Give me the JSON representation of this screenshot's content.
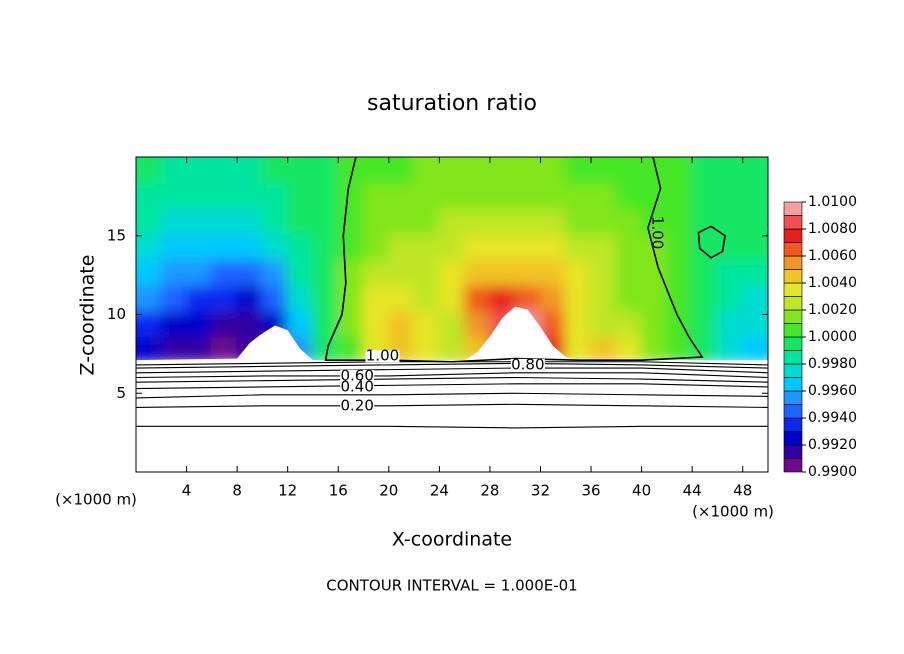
{
  "chart_data": {
    "type": "contour",
    "title": "saturation ratio",
    "x_label": "X-coordinate",
    "y_label": "Z-coordinate",
    "x_unit": "(×1000 m)",
    "y_unit": "(×1000 m)",
    "footer": "CONTOUR INTERVAL = 1.000E-01",
    "xlim": [
      0,
      50
    ],
    "ylim": [
      0,
      20
    ],
    "xticks": [
      4,
      8,
      12,
      16,
      20,
      24,
      28,
      32,
      36,
      40,
      44,
      48
    ],
    "yticks": [
      5,
      10,
      15
    ],
    "colorbar": {
      "levels": [
        0.99,
        0.991,
        0.992,
        0.993,
        0.994,
        0.995,
        0.996,
        0.997,
        0.998,
        0.999,
        1.0,
        1.001,
        1.002,
        1.003,
        1.004,
        1.005,
        1.006,
        1.007,
        1.008,
        1.009,
        1.01
      ],
      "colors": [
        "#6e0a8c",
        "#3200a0",
        "#0000c8",
        "#0a28f0",
        "#1e64ff",
        "#1e96ff",
        "#00c8ff",
        "#00dcd2",
        "#00e6a0",
        "#14e664",
        "#46e628",
        "#82e61e",
        "#bee628",
        "#e6e628",
        "#f0c328",
        "#f09628",
        "#f05a1e",
        "#e61e1e",
        "#f05050",
        "#f0a0a0"
      ],
      "ticks": [
        {
          "value": 0.99,
          "label": "0.9900"
        },
        {
          "value": 0.992,
          "label": "0.9920"
        },
        {
          "value": 0.994,
          "label": "0.9940"
        },
        {
          "value": 0.996,
          "label": "0.9960"
        },
        {
          "value": 0.998,
          "label": "0.9980"
        },
        {
          "value": 1.0,
          "label": "1.0000"
        },
        {
          "value": 1.002,
          "label": "1.0020"
        },
        {
          "value": 1.004,
          "label": "1.0040"
        },
        {
          "value": 1.006,
          "label": "1.0060"
        },
        {
          "value": 1.008,
          "label": "1.0080"
        },
        {
          "value": 1.01,
          "label": "1.0100"
        }
      ]
    },
    "field": {
      "x_edges": [
        0,
        2,
        4,
        6,
        8,
        10,
        12,
        14,
        16,
        18,
        20,
        22,
        24,
        26,
        28,
        30,
        32,
        34,
        36,
        38,
        40,
        42,
        44,
        46,
        48,
        50
      ],
      "z_edges": [
        7,
        8.625,
        10.25,
        11.875,
        13.5,
        15.125,
        16.75,
        18.375,
        20
      ],
      "values": [
        [
          0.9925,
          0.9915,
          0.991,
          0.9905,
          0.991,
          0.9905,
          0.995,
          0.999,
          1.0005,
          1.003,
          1.004,
          1.0035,
          1.002,
          1.004,
          1.008,
          1.009,
          1.007,
          1.003,
          1.004,
          1.003,
          1.001,
          1.0005,
          0.999,
          0.9975,
          0.9965
        ],
        [
          0.9935,
          0.9925,
          0.992,
          0.9915,
          0.991,
          0.992,
          0.9965,
          0.9995,
          1.001,
          1.0035,
          1.0045,
          1.003,
          1.0025,
          1.005,
          1.0085,
          1.009,
          1.006,
          1.003,
          1.0025,
          1.002,
          1.001,
          1.0005,
          0.999,
          0.997,
          0.997
        ],
        [
          0.995,
          0.9945,
          0.9935,
          0.993,
          0.9925,
          0.9945,
          0.997,
          0.9995,
          1.0015,
          1.003,
          1.003,
          1.002,
          1.003,
          1.006,
          1.007,
          1.0065,
          1.005,
          1.003,
          1.002,
          1.0015,
          1.001,
          1.0005,
          0.9995,
          0.998,
          0.9975
        ],
        [
          0.996,
          0.9955,
          0.995,
          0.9945,
          0.994,
          0.9955,
          0.998,
          0.9995,
          1.001,
          1.002,
          1.002,
          1.002,
          1.003,
          1.004,
          1.004,
          1.0045,
          1.004,
          1.003,
          1.002,
          1.0015,
          1.001,
          1.0005,
          0.9995,
          0.9985,
          0.9985
        ],
        [
          0.997,
          0.9965,
          0.9965,
          0.996,
          0.996,
          0.997,
          0.9985,
          0.9995,
          1.0005,
          1.0015,
          1.002,
          1.002,
          1.0025,
          1.003,
          1.003,
          1.003,
          1.003,
          1.0025,
          1.002,
          1.0015,
          1.001,
          1.0005,
          0.9995,
          0.9995,
          0.999
        ],
        [
          0.998,
          0.9975,
          0.9975,
          0.997,
          0.997,
          0.998,
          0.999,
          0.9995,
          1.0005,
          1.001,
          1.0015,
          1.0015,
          1.002,
          1.002,
          1.002,
          1.002,
          1.002,
          1.0015,
          1.0015,
          1.001,
          1.0005,
          1.0005,
          0.9995,
          0.9995,
          0.9995
        ],
        [
          0.9985,
          0.998,
          0.998,
          0.998,
          0.998,
          0.9985,
          0.999,
          0.9995,
          1.0005,
          1.001,
          1.001,
          1.001,
          1.0015,
          1.0015,
          1.0015,
          1.0015,
          1.0015,
          1.001,
          1.001,
          1.0005,
          1.0005,
          1.0005,
          0.9995,
          0.9995,
          0.9995
        ],
        [
          0.999,
          0.9985,
          0.9985,
          0.9985,
          0.9985,
          0.999,
          0.9995,
          0.9995,
          1.0005,
          1.0005,
          1.0005,
          1.001,
          1.001,
          1.001,
          1.001,
          1.001,
          1.001,
          1.0005,
          1.0005,
          1.0005,
          1.0005,
          1.0005,
          0.9995,
          0.9995,
          0.9995
        ]
      ]
    },
    "terrain": {
      "x": [
        0,
        8,
        9,
        10,
        11,
        12,
        13,
        14,
        26,
        27,
        28,
        29,
        30,
        31,
        32,
        33,
        34,
        35,
        50
      ],
      "z": [
        7.1,
        7.2,
        8.2,
        8.8,
        9.3,
        9.0,
        7.8,
        7.1,
        7.1,
        7.6,
        8.6,
        9.8,
        10.5,
        10.3,
        9.2,
        8.0,
        7.3,
        7.1,
        7.1
      ]
    },
    "contours": [
      {
        "level": 0.1,
        "x": [
          0,
          10,
          20,
          30,
          40,
          50
        ],
        "z": [
          2.9,
          2.9,
          2.9,
          2.8,
          2.9,
          2.9
        ]
      },
      {
        "level": 0.2,
        "label": "0.20",
        "x": [
          0,
          10,
          20,
          30,
          40,
          50
        ],
        "z": [
          4.1,
          4.2,
          4.2,
          4.3,
          4.2,
          4.1
        ]
      },
      {
        "level": 0.3,
        "x": [
          0,
          10,
          20,
          30,
          40,
          50
        ],
        "z": [
          4.7,
          4.9,
          4.9,
          5.0,
          4.9,
          4.8
        ]
      },
      {
        "level": 0.4,
        "label": "0.40",
        "x": [
          0,
          10,
          20,
          30,
          40,
          50
        ],
        "z": [
          5.3,
          5.4,
          5.5,
          5.6,
          5.6,
          5.4
        ]
      },
      {
        "level": 0.5,
        "x": [
          0,
          10,
          20,
          30,
          40,
          50
        ],
        "z": [
          5.7,
          5.8,
          5.9,
          6.0,
          5.9,
          5.7
        ]
      },
      {
        "level": 0.6,
        "label": "0.60",
        "x": [
          0,
          10,
          20,
          30,
          40,
          50
        ],
        "z": [
          6.0,
          6.1,
          6.1,
          6.3,
          6.3,
          6.0
        ]
      },
      {
        "level": 0.7,
        "x": [
          0,
          10,
          20,
          30,
          40,
          50
        ],
        "z": [
          6.3,
          6.4,
          6.5,
          6.6,
          6.6,
          6.3
        ]
      },
      {
        "level": 0.8,
        "label": "0.80",
        "x": [
          0,
          10,
          20,
          30,
          40,
          50
        ],
        "z": [
          6.6,
          6.7,
          6.8,
          6.9,
          6.8,
          6.6
        ]
      },
      {
        "level": 0.9,
        "x": [
          0,
          10,
          20,
          30,
          40,
          50
        ],
        "z": [
          6.8,
          6.9,
          7.0,
          7.0,
          7.0,
          6.8
        ]
      },
      {
        "level": 1.0,
        "label": "1.00",
        "x": [
          17.4,
          16.8,
          16.4,
          16.6,
          16.3,
          15.2,
          15.0,
          20,
          25,
          30,
          35,
          40,
          44.8,
          43.8,
          42.8,
          41.3,
          40.5,
          41.5,
          40.9
        ],
        "z": [
          20,
          18,
          15,
          12,
          10,
          8,
          7.1,
          7.1,
          7.0,
          7.2,
          7.1,
          7.1,
          7.3,
          8.5,
          10,
          13,
          15.5,
          18,
          20
        ]
      },
      {
        "level": 1.0,
        "x": [
          45.5,
          46.6,
          46.4,
          45.5,
          44.6,
          44.5,
          45.5
        ],
        "z": [
          15.6,
          15.0,
          14.0,
          13.6,
          14.2,
          15.2,
          15.6
        ]
      }
    ]
  }
}
